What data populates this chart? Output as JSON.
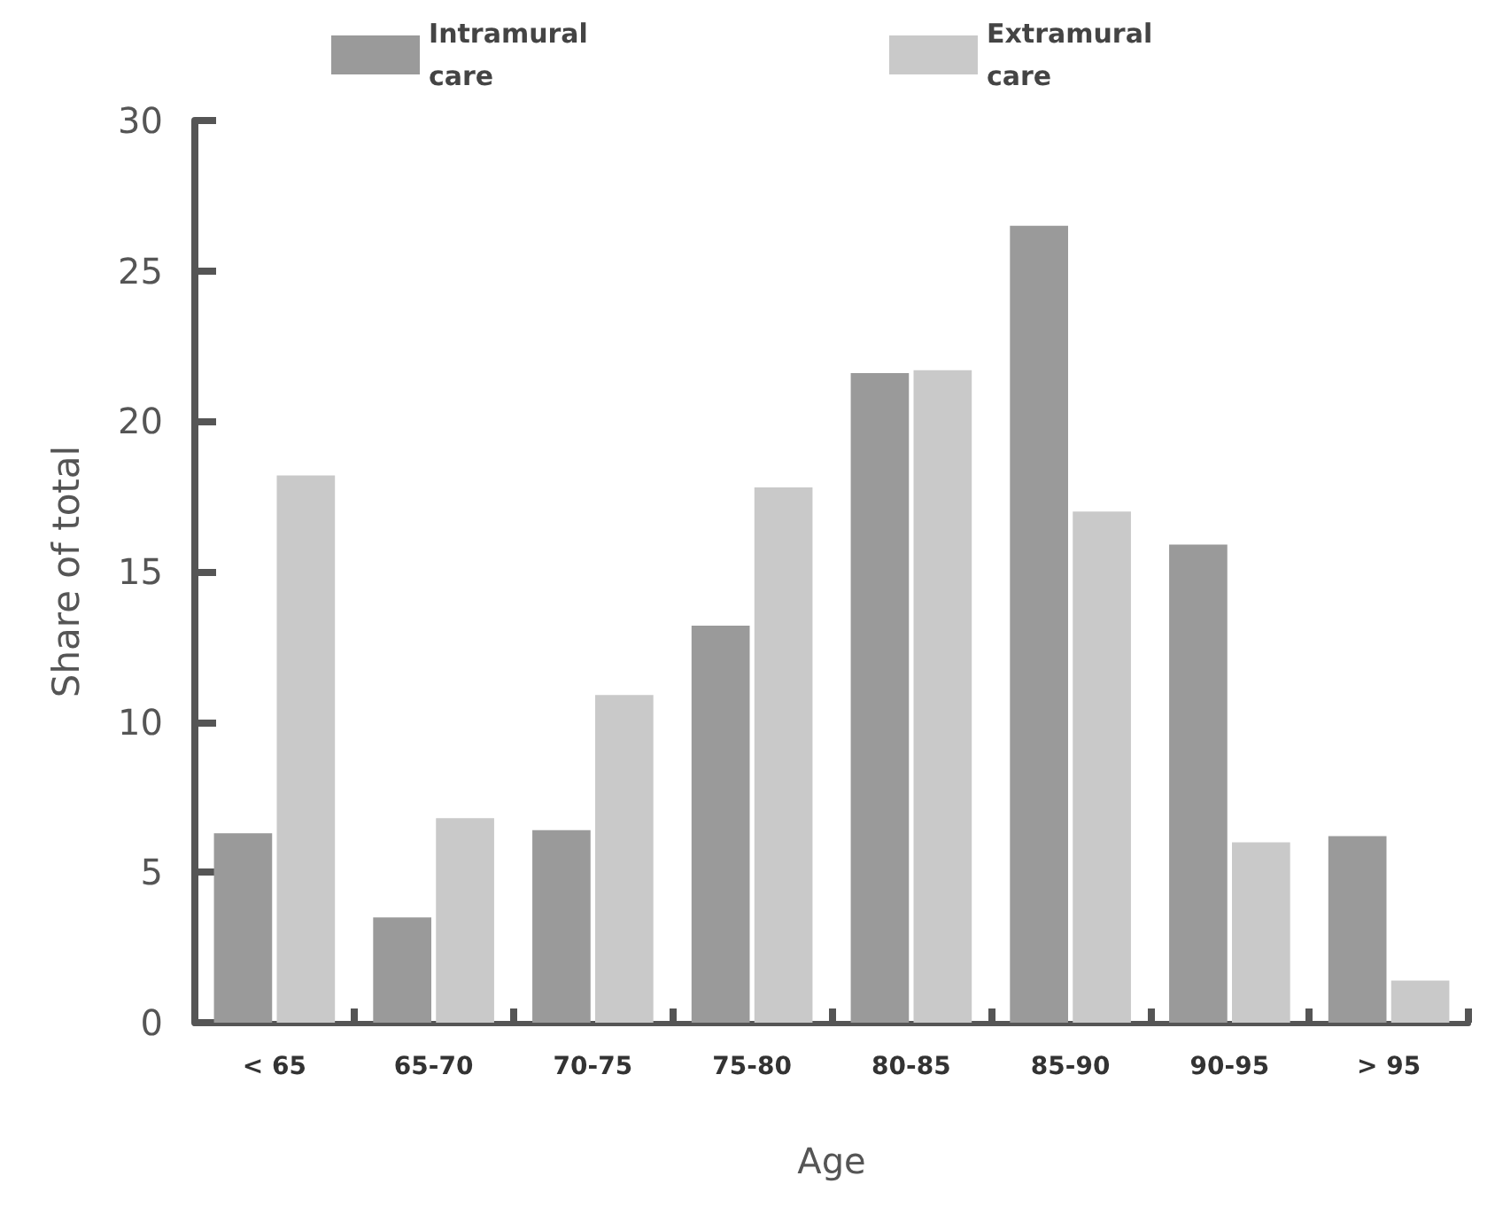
{
  "chart_data": {
    "type": "bar",
    "xlabel": "Age",
    "ylabel": "Share of total",
    "categories": [
      "< 65",
      "65-70",
      "70-75",
      "75-80",
      "80-85",
      "85-90",
      "90-95",
      "> 95"
    ],
    "series": [
      {
        "name": "Intramural care",
        "color": "#9a9a9a",
        "values": [
          6.3,
          3.5,
          6.4,
          13.2,
          21.6,
          26.5,
          15.9,
          6.2
        ]
      },
      {
        "name": "Extramural care",
        "color": "#c9c9c9",
        "values": [
          18.2,
          6.8,
          10.9,
          17.8,
          21.7,
          17.0,
          6.0,
          1.4
        ]
      }
    ],
    "ylim": [
      0,
      30
    ],
    "yticks": [
      0,
      5,
      10,
      15,
      20,
      25,
      30
    ],
    "grid": false,
    "legend": "top"
  }
}
